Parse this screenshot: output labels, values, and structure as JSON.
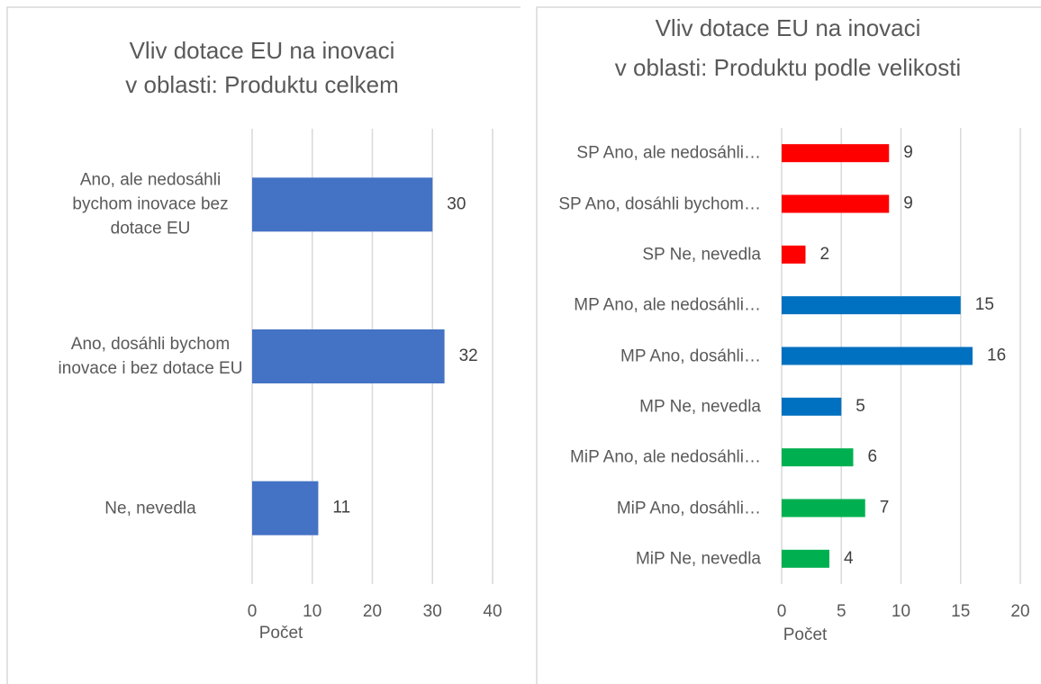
{
  "chart_data": [
    {
      "type": "bar",
      "title": [
        "Vliv dotace EU na inovaci",
        "v oblasti: Produktu celkem"
      ],
      "categories": [
        "Ano, ale nedosáhli bychom inovace bez dotace EU",
        "Ano, dosáhli bychom inovace i bez dotace EU",
        "Ne, nevedla"
      ],
      "values": [
        30,
        32,
        11
      ],
      "colors": [
        "#4472c4",
        "#4472c4",
        "#4472c4"
      ],
      "xlim": [
        0,
        40
      ],
      "xticks": [
        0,
        10,
        20,
        30,
        40
      ],
      "xlabel": "Počet",
      "grid": true
    },
    {
      "type": "bar",
      "title": [
        "Vliv dotace EU na inovaci",
        "v oblasti: Produktu podle velikosti"
      ],
      "categories": [
        "SP Ano, ale nedosáhli…",
        "SP Ano, dosáhli bychom…",
        "SP Ne, nevedla",
        "MP Ano, ale nedosáhli…",
        "MP Ano, dosáhli…",
        "MP Ne, nevedla",
        "MiP Ano, ale nedosáhli…",
        "MiP Ano, dosáhli…",
        "MiP Ne, nevedla"
      ],
      "values": [
        9,
        9,
        2,
        15,
        16,
        5,
        6,
        7,
        4
      ],
      "colors": [
        "#ff0000",
        "#ff0000",
        "#ff0000",
        "#0070c0",
        "#0070c0",
        "#0070c0",
        "#00b050",
        "#00b050",
        "#00b050"
      ],
      "xlim": [
        0,
        20
      ],
      "xticks": [
        0,
        5,
        10,
        15,
        20
      ],
      "xlabel": "Počet",
      "grid": true
    }
  ]
}
